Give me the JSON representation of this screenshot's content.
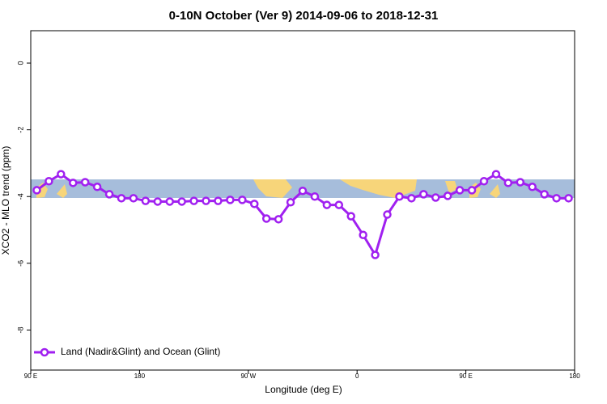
{
  "chart_data": {
    "type": "line",
    "title": "0-10N October (Ver 9)   2014-09-06 to 2018-12-31",
    "x_label": "Longitude (deg E)",
    "y_label": "XCO2 - MLO trend (ppm)",
    "x": [
      95,
      105,
      115,
      125,
      135,
      145,
      155,
      165,
      175,
      185,
      195,
      205,
      215,
      225,
      235,
      245,
      255,
      265,
      275,
      285,
      295,
      305,
      315,
      325,
      335,
      345,
      355,
      365,
      375,
      385,
      395,
      405,
      415,
      425,
      435,
      445,
      455,
      465,
      475,
      485,
      495,
      505,
      515,
      525,
      535
    ],
    "series": [
      {
        "name": "Land (Nadir&Glint) and Ocean (Glint)",
        "color": "#a020f0",
        "values": [
          -3.81,
          -3.54,
          -3.33,
          -3.59,
          -3.57,
          -3.71,
          -3.93,
          -4.05,
          -4.05,
          -4.13,
          -4.15,
          -4.15,
          -4.15,
          -4.13,
          -4.13,
          -4.13,
          -4.1,
          -4.1,
          -4.22,
          -4.66,
          -4.68,
          -4.17,
          -3.83,
          -4.0,
          -4.25,
          -4.25,
          -4.59,
          -5.15,
          -5.75,
          -4.54,
          -4.0,
          -4.05,
          -3.93,
          -4.03,
          -3.98,
          -3.81,
          -3.81,
          -3.54,
          -3.33,
          -3.59,
          -3.57,
          -3.71,
          -3.93,
          -4.05,
          -4.05
        ]
      }
    ],
    "xlim": [
      90,
      540
    ],
    "xticks": [
      {
        "value": 90,
        "label": "90 E"
      },
      180,
      {
        "value": 270,
        "label": "90 W"
      },
      {
        "value": 360,
        "label": "0"
      },
      {
        "value": 450,
        "label": "90 E"
      },
      {
        "value": 540,
        "label": "180"
      }
    ],
    "ylim": [
      -9.2,
      0.97
    ],
    "yticks": [
      0,
      -2,
      -4,
      -6,
      -8
    ],
    "legend": "bottom left",
    "grid": false
  }
}
